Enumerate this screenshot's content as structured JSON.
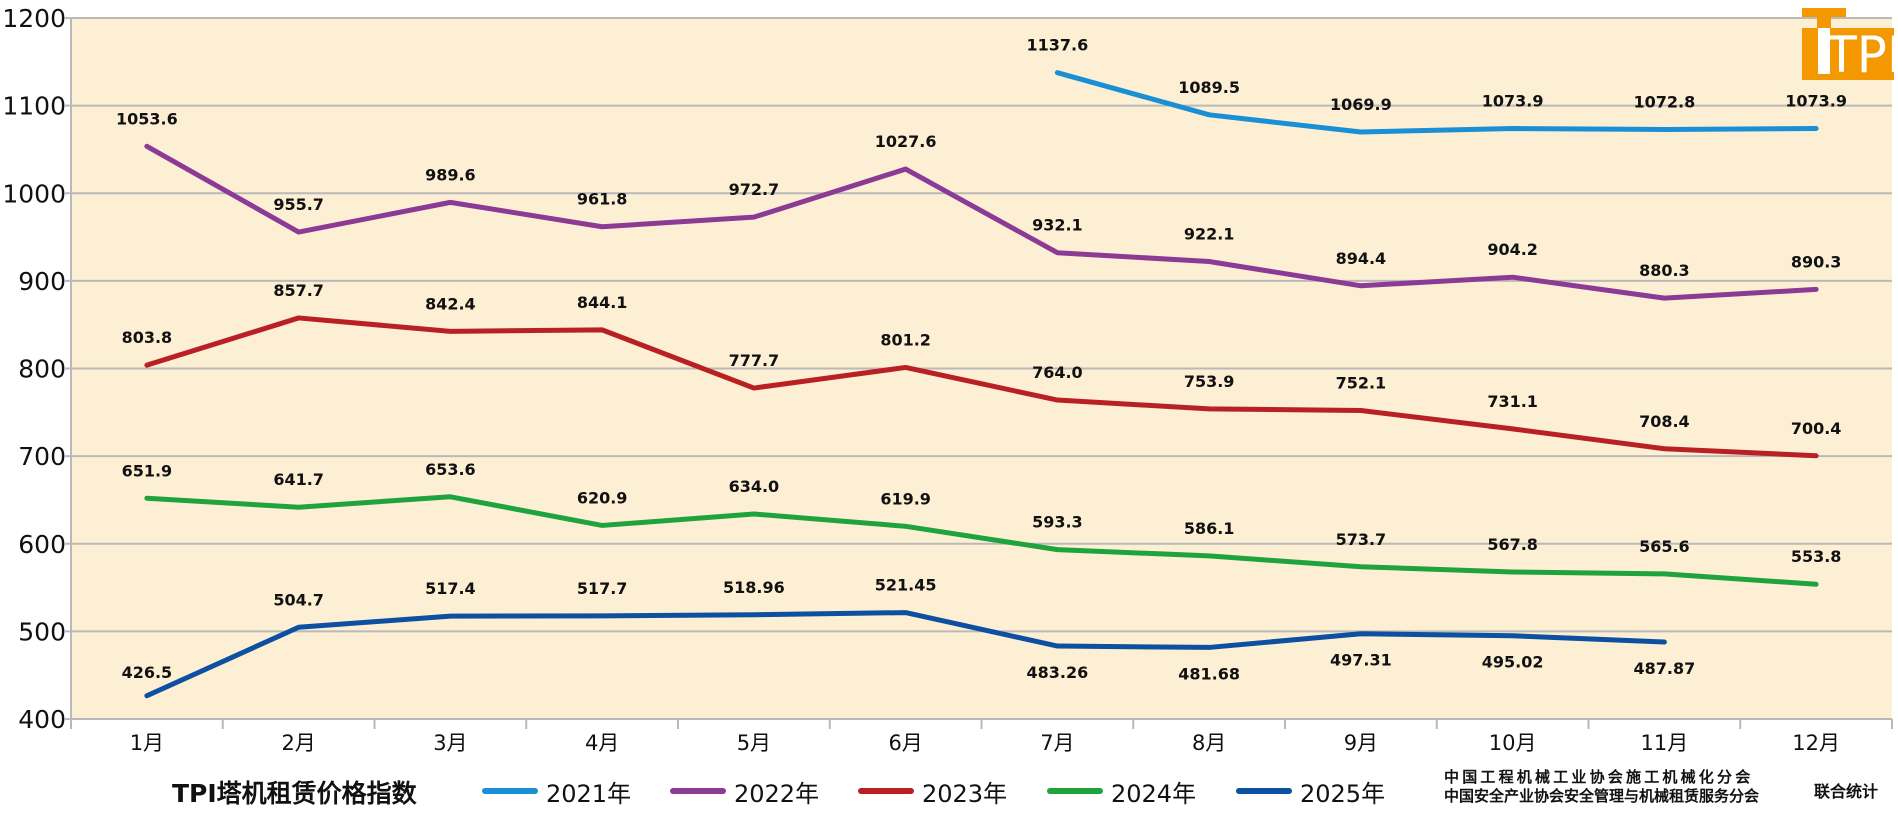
{
  "chart_data": {
    "type": "line",
    "title": "TPI塔机租赁价格指数",
    "xlabel": "",
    "ylabel": "",
    "categories": [
      "1月",
      "2月",
      "3月",
      "4月",
      "5月",
      "6月",
      "7月",
      "8月",
      "9月",
      "10月",
      "11月",
      "12月"
    ],
    "yticks": [
      400,
      500,
      600,
      700,
      800,
      900,
      1000,
      1100,
      1200
    ],
    "ylim": [
      400,
      1200
    ],
    "grid": true,
    "legend_position": "bottom",
    "series": [
      {
        "name": "2021年",
        "color": "#1a8fd6",
        "values": [
          null,
          null,
          null,
          null,
          null,
          null,
          1137.6,
          1089.5,
          1069.9,
          1073.9,
          1072.8,
          1073.9
        ],
        "labels": [
          null,
          null,
          null,
          null,
          null,
          null,
          "1137.6",
          "1089.5",
          "1069.9",
          "1073.9",
          "1072.8",
          "1073.9"
        ]
      },
      {
        "name": "2022年",
        "color": "#8b3a96",
        "values": [
          1053.6,
          955.7,
          989.6,
          961.8,
          972.7,
          1027.6,
          932.1,
          922.1,
          894.4,
          904.2,
          880.3,
          890.3
        ],
        "labels": [
          "1053.6",
          "955.7",
          "989.6",
          "961.8",
          "972.7",
          "1027.6",
          "932.1",
          "922.1",
          "894.4",
          "904.2",
          "880.3",
          "890.3"
        ]
      },
      {
        "name": "2023年",
        "color": "#b82024",
        "values": [
          803.8,
          857.7,
          842.4,
          844.1,
          777.7,
          801.2,
          764.0,
          753.9,
          752.1,
          731.1,
          708.4,
          700.4
        ],
        "labels": [
          "803.8",
          "857.7",
          "842.4",
          "844.1",
          "777.7",
          "801.2",
          "764.0",
          "753.9",
          "752.1",
          "731.1",
          "708.4",
          "700.4"
        ]
      },
      {
        "name": "2024年",
        "color": "#1fa33c",
        "values": [
          651.9,
          641.7,
          653.6,
          620.9,
          634.0,
          619.9,
          593.3,
          586.1,
          573.7,
          567.8,
          565.6,
          553.8
        ],
        "labels": [
          "651.9",
          "641.7",
          "653.6",
          "620.9",
          "634.0",
          "619.9",
          "593.3",
          "586.1",
          "573.7",
          "567.8",
          "565.6",
          "553.8"
        ]
      },
      {
        "name": "2025年",
        "color": "#0d4fa0",
        "values": [
          426.5,
          504.7,
          517.4,
          517.7,
          518.96,
          521.45,
          483.26,
          481.68,
          497.31,
          495.02,
          487.87,
          null
        ],
        "labels": [
          "426.5",
          "504.7",
          "517.4",
          "517.7",
          "518.96",
          "521.45",
          "483.26",
          "481.68",
          "497.31",
          "495.02",
          "487.87",
          null
        ]
      }
    ]
  },
  "legend": {
    "title": "TPI塔机租赁价格指数",
    "items": [
      "2021年",
      "2022年",
      "2023年",
      "2024年",
      "2025年"
    ]
  },
  "footer": {
    "org_line1": "中国工程机械工业协会施工机械化分会",
    "org_line2": "中国安全产业协会安全管理与机械租赁服务分会",
    "joint": "联合统计"
  },
  "logo": {
    "text": "TPI",
    "color": "#f39800"
  },
  "colors": {
    "plot_background": "#fdefd3",
    "grid": "#b9b9b9"
  }
}
